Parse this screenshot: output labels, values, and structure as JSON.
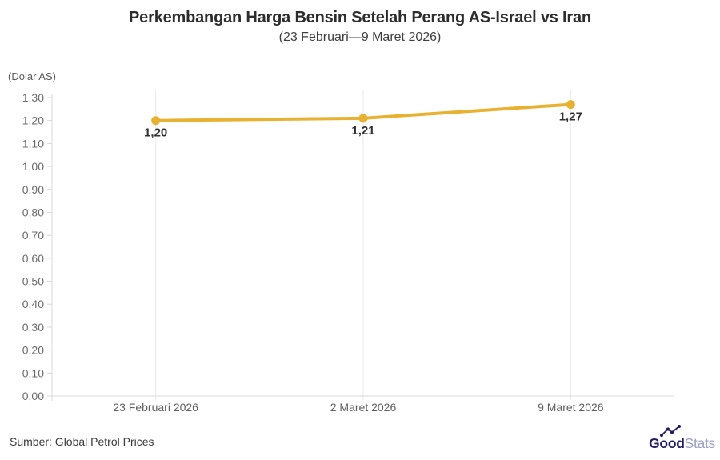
{
  "chart_data": {
    "type": "line",
    "title": "Perkembangan Harga Bensin Setelah Perang AS-Israel vs Iran",
    "subtitle": "(23 Februari—9 Maret 2026)",
    "unit_label": "(Dolar AS)",
    "categories": [
      "23 Februari 2026",
      "2 Maret 2026",
      "9 Maret 2026"
    ],
    "values": [
      1.2,
      1.21,
      1.27
    ],
    "data_labels": [
      "1,20",
      "1,21",
      "1,27"
    ],
    "ylim": [
      0,
      1.3
    ],
    "ytick_step": 0.1,
    "ytick_labels": [
      "0,00",
      "0,10",
      "0,20",
      "0,30",
      "0,40",
      "0,50",
      "0,60",
      "0,70",
      "0,80",
      "0,90",
      "1,00",
      "1,10",
      "1,20",
      "1,30"
    ],
    "grid": "vertical-only",
    "legend": "none",
    "line_color": "#E8B132",
    "point_color": "#E8B132",
    "gridline_color": "#E9E9E9",
    "axis_color": "#D8D8D8"
  },
  "footer": {
    "source": "Sumber: Global Petrol Prices",
    "logo": {
      "text_bold": "Good",
      "text_light": "Stats",
      "icon": "trending-up-sparkline-with-dots",
      "navy_color": "#211D63",
      "light_color": "#99A1C0"
    }
  }
}
